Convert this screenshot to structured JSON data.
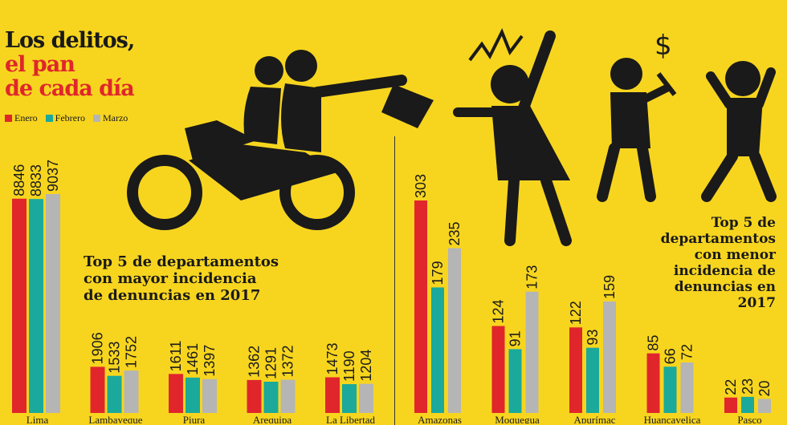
{
  "title": {
    "line1": "Los delitos,",
    "line2": "el pan",
    "line3": "de cada día"
  },
  "legend": [
    {
      "label": "Enero",
      "color": "#E0262B"
    },
    {
      "label": "Febrero",
      "color": "#1AA99B"
    },
    {
      "label": "Marzo",
      "color": "#B5B5B5"
    }
  ],
  "subtitles": {
    "left": [
      "Top 5 de departamentos",
      "con mayor incidencia",
      "de denuncias en 2017"
    ],
    "right": [
      "Top 5 de",
      "departamentos",
      "con menor",
      "incidencia de",
      "denuncias en",
      "2017"
    ]
  },
  "chart_data": [
    {
      "type": "bar",
      "title": "Top 5 de departamentos con mayor incidencia de denuncias en 2017",
      "categories": [
        "Lima",
        "Lambayeque",
        "Piura",
        "Arequipa",
        "La Libertad"
      ],
      "series": [
        {
          "name": "Enero",
          "values": [
            8846,
            1906,
            1611,
            1362,
            1473
          ]
        },
        {
          "name": "Febrero",
          "values": [
            8833,
            1533,
            1461,
            1291,
            1190
          ]
        },
        {
          "name": "Marzo",
          "values": [
            9037,
            1752,
            1397,
            1372,
            1204
          ]
        }
      ]
    },
    {
      "type": "bar",
      "title": "Top 5 de departamentos con menor incidencia de denuncias en 2017",
      "categories": [
        "Amazonas",
        "Moquegua",
        "Apurímac",
        "Huancavelica",
        "Pasco"
      ],
      "series": [
        {
          "name": "Enero",
          "values": [
            303,
            124,
            122,
            85,
            22
          ]
        },
        {
          "name": "Febrero",
          "values": [
            179,
            91,
            93,
            66,
            23
          ]
        },
        {
          "name": "Marzo",
          "values": [
            235,
            173,
            159,
            72,
            20
          ]
        }
      ]
    }
  ]
}
